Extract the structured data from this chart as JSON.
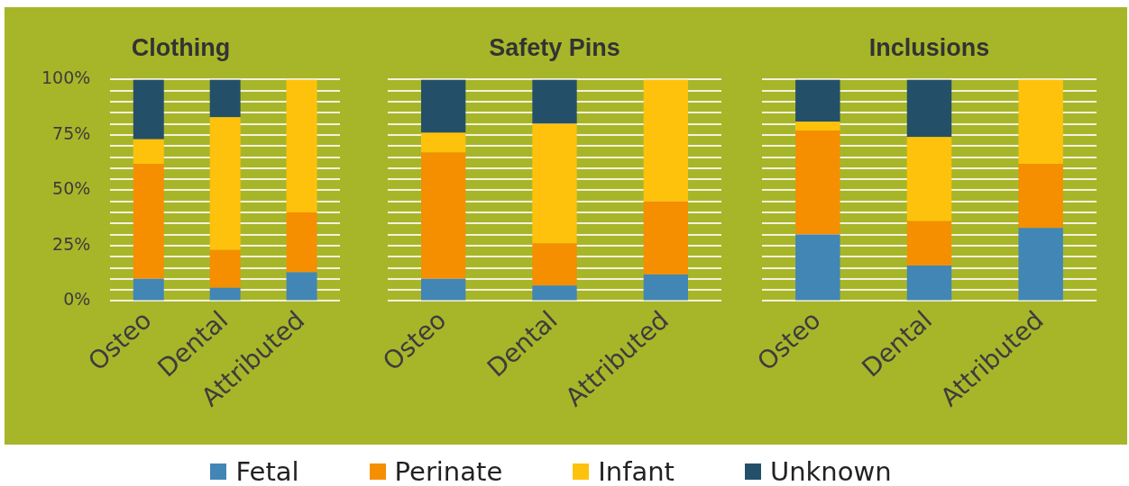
{
  "chart_data": [
    {
      "type": "bar",
      "title": "Clothing",
      "categories": [
        "Osteo",
        "Dental",
        "Attributed"
      ],
      "stacked": true,
      "series": [
        {
          "name": "Fetal",
          "color": "#4286b6",
          "values": [
            10,
            6,
            13
          ]
        },
        {
          "name": "Perinate",
          "color": "#f58f00",
          "values": [
            52,
            17,
            27
          ]
        },
        {
          "name": "Infant",
          "color": "#fec20c",
          "values": [
            11,
            60,
            60
          ]
        },
        {
          "name": "Unknown",
          "color": "#235068",
          "values": [
            27,
            17,
            0
          ]
        }
      ],
      "ylim": [
        0,
        100
      ],
      "yticks": [
        {
          "value": 0,
          "label": "0%"
        },
        {
          "value": 5,
          "label": null
        },
        {
          "value": 10,
          "label": null
        },
        {
          "value": 15,
          "label": null
        },
        {
          "value": 20,
          "label": null
        },
        {
          "value": 25,
          "label": "25%"
        },
        {
          "value": 30,
          "label": null
        },
        {
          "value": 35,
          "label": null
        },
        {
          "value": 40,
          "label": null
        },
        {
          "value": 45,
          "label": null
        },
        {
          "value": 50,
          "label": "50%"
        },
        {
          "value": 55,
          "label": null
        },
        {
          "value": 60,
          "label": null
        },
        {
          "value": 65,
          "label": null
        },
        {
          "value": 70,
          "label": null
        },
        {
          "value": 75,
          "label": "75%"
        },
        {
          "value": 80,
          "label": null
        },
        {
          "value": 85,
          "label": null
        },
        {
          "value": 90,
          "label": null
        },
        {
          "value": 95,
          "label": null
        },
        {
          "value": 100,
          "label": "100%"
        }
      ],
      "grid": "y",
      "legend": "bottom"
    },
    {
      "type": "bar",
      "title": "Safety Pins",
      "categories": [
        "Osteo",
        "Dental",
        "Attributed"
      ],
      "stacked": true,
      "series": [
        {
          "color": "#4286b6",
          "values": [
            10,
            7,
            12
          ]
        },
        {
          "color": "#f58f00",
          "values": [
            57,
            19,
            33
          ]
        },
        {
          "color": "#fec20c",
          "values": [
            9,
            54,
            55
          ]
        },
        {
          "color": "#235068",
          "values": [
            24,
            20,
            0
          ]
        }
      ],
      "ylim": [
        0,
        100
      ],
      "yticks": [
        {
          "value": 0,
          "label": null
        },
        {
          "value": 5,
          "label": null
        },
        {
          "value": 10,
          "label": null
        },
        {
          "value": 15,
          "label": null
        },
        {
          "value": 20,
          "label": null
        },
        {
          "value": 25,
          "label": null
        },
        {
          "value": 30,
          "label": null
        },
        {
          "value": 35,
          "label": null
        },
        {
          "value": 40,
          "label": null
        },
        {
          "value": 45,
          "label": null
        },
        {
          "value": 50,
          "label": null
        },
        {
          "value": 55,
          "label": null
        },
        {
          "value": 60,
          "label": null
        },
        {
          "value": 65,
          "label": null
        },
        {
          "value": 70,
          "label": null
        },
        {
          "value": 75,
          "label": null
        },
        {
          "value": 80,
          "label": null
        },
        {
          "value": 85,
          "label": null
        },
        {
          "value": 90,
          "label": null
        },
        {
          "value": 95,
          "label": null
        },
        {
          "value": 100,
          "label": null
        }
      ],
      "grid": "y",
      "tick_labels": "x"
    },
    {
      "type": "bar",
      "title": "Inclusions",
      "categories": [
        "Osteo",
        "Dental",
        "Attributed"
      ],
      "stacked": true,
      "series": [
        {
          "color": "#4286b6",
          "values": [
            30,
            16,
            33
          ]
        },
        {
          "color": "#f58f00",
          "values": [
            47,
            20,
            29
          ]
        },
        {
          "color": "#fec20c",
          "values": [
            4,
            38,
            38
          ]
        },
        {
          "color": "#235068",
          "values": [
            19,
            26,
            0
          ]
        }
      ],
      "ylim": [
        0,
        100
      ],
      "yticks": [
        {
          "value": 0,
          "label": null
        },
        {
          "value": 5,
          "label": null
        },
        {
          "value": 10,
          "label": null
        },
        {
          "value": 15,
          "label": null
        },
        {
          "value": 20,
          "label": null
        },
        {
          "value": 25,
          "label": null
        },
        {
          "value": 30,
          "label": null
        },
        {
          "value": 35,
          "label": null
        },
        {
          "value": 40,
          "label": null
        },
        {
          "value": 45,
          "label": null
        },
        {
          "value": 50,
          "label": null
        },
        {
          "value": 55,
          "label": null
        },
        {
          "value": 60,
          "label": null
        },
        {
          "value": 65,
          "label": null
        },
        {
          "value": 70,
          "label": null
        },
        {
          "value": 75,
          "label": null
        },
        {
          "value": 80,
          "label": null
        },
        {
          "value": 85,
          "label": null
        },
        {
          "value": 90,
          "label": null
        },
        {
          "value": 95,
          "label": null
        },
        {
          "value": 100,
          "label": null
        }
      ],
      "grid": "y",
      "tick_labels": "x"
    }
  ]
}
